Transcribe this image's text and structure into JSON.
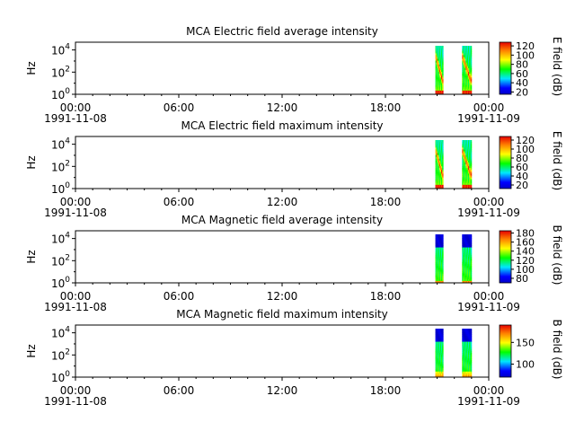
{
  "chart_data": [
    {
      "type": "heatmap",
      "title": "MCA  Electric field average intensity",
      "ylabel": "Hz",
      "colorbar_label": "E field (dB)",
      "colorbar_ticks": [
        20,
        40,
        60,
        80,
        100,
        120
      ],
      "zlim": [
        15,
        128
      ],
      "y_scale": "log",
      "ylim": [
        1,
        50000
      ],
      "y_ticks": [
        {
          "base": "10",
          "exp": "0"
        },
        {
          "base": "10",
          "exp": "2"
        },
        {
          "base": "10",
          "exp": "4"
        }
      ],
      "x_ticks": [
        "00:00",
        "06:00",
        "12:00",
        "18:00",
        "00:00"
      ],
      "x_dates": [
        "1991-11-08",
        "",
        "",
        "",
        "1991-11-09"
      ],
      "x_range_hours": [
        0,
        24
      ],
      "data_segments": [
        {
          "start_hour": 20.9,
          "end_hour": 21.35,
          "profile": "e-avg"
        },
        {
          "start_hour": 22.45,
          "end_hour": 23.0,
          "profile": "e-avg"
        }
      ]
    },
    {
      "type": "heatmap",
      "title": "MCA  Electric field maximum intensity",
      "ylabel": "Hz",
      "colorbar_label": "E field (dB)",
      "colorbar_ticks": [
        20,
        40,
        60,
        80,
        100,
        120
      ],
      "zlim": [
        12,
        128
      ],
      "y_scale": "log",
      "ylim": [
        1,
        50000
      ],
      "y_ticks": [
        {
          "base": "10",
          "exp": "0"
        },
        {
          "base": "10",
          "exp": "2"
        },
        {
          "base": "10",
          "exp": "4"
        }
      ],
      "x_ticks": [
        "00:00",
        "06:00",
        "12:00",
        "18:00",
        "00:00"
      ],
      "x_dates": [
        "1991-11-08",
        "",
        "",
        "",
        "1991-11-09"
      ],
      "x_range_hours": [
        0,
        24
      ],
      "data_segments": [
        {
          "start_hour": 20.9,
          "end_hour": 21.35,
          "profile": "e-max"
        },
        {
          "start_hour": 22.45,
          "end_hour": 23.0,
          "profile": "e-max"
        }
      ]
    },
    {
      "type": "heatmap",
      "title": "MCA  Magnetic field average intensity",
      "ylabel": "Hz",
      "colorbar_label": "B field (dB)",
      "colorbar_ticks": [
        80,
        100,
        120,
        140,
        160,
        180
      ],
      "zlim": [
        70,
        185
      ],
      "y_scale": "log",
      "ylim": [
        1,
        50000
      ],
      "y_ticks": [
        {
          "base": "10",
          "exp": "0"
        },
        {
          "base": "10",
          "exp": "2"
        },
        {
          "base": "10",
          "exp": "4"
        }
      ],
      "x_ticks": [
        "00:00",
        "06:00",
        "12:00",
        "18:00",
        "00:00"
      ],
      "x_dates": [
        "1991-11-08",
        "",
        "",
        "",
        "1991-11-09"
      ],
      "x_range_hours": [
        0,
        24
      ],
      "data_segments": [
        {
          "start_hour": 20.9,
          "end_hour": 21.35,
          "profile": "b-avg"
        },
        {
          "start_hour": 22.45,
          "end_hour": 23.0,
          "profile": "b-avg"
        }
      ]
    },
    {
      "type": "heatmap",
      "title": "MCA  Magnetic field maximum intensity",
      "ylabel": "Hz",
      "colorbar_label": "B field (dB)",
      "colorbar_ticks": [
        100,
        150
      ],
      "zlim": [
        70,
        190
      ],
      "y_scale": "log",
      "ylim": [
        1,
        50000
      ],
      "y_ticks": [
        {
          "base": "10",
          "exp": "0"
        },
        {
          "base": "10",
          "exp": "2"
        },
        {
          "base": "10",
          "exp": "4"
        }
      ],
      "x_ticks": [
        "00:00",
        "06:00",
        "12:00",
        "18:00",
        "00:00"
      ],
      "x_dates": [
        "1991-11-08",
        "",
        "",
        "",
        "1991-11-09"
      ],
      "x_range_hours": [
        0,
        24
      ],
      "data_segments": [
        {
          "start_hour": 20.9,
          "end_hour": 21.35,
          "profile": "b-max"
        },
        {
          "start_hour": 22.45,
          "end_hour": 23.0,
          "profile": "b-max"
        }
      ]
    }
  ]
}
